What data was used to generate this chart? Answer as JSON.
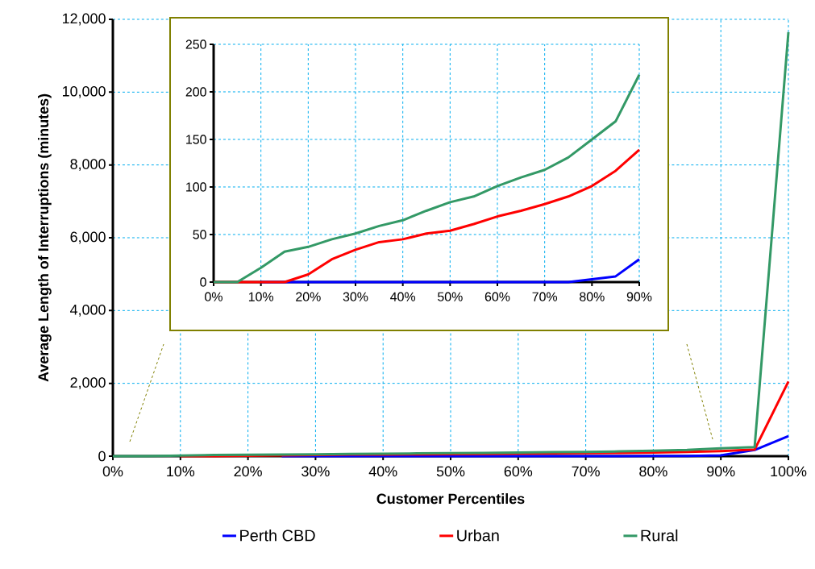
{
  "chart_data": [
    {
      "type": "line",
      "xlabel": "Customer Percentiles",
      "ylabel": "Average Length of Interruptions (minutes)",
      "x": [
        0,
        5,
        10,
        15,
        20,
        25,
        30,
        35,
        40,
        45,
        50,
        55,
        60,
        65,
        70,
        75,
        80,
        85,
        90,
        95,
        100
      ],
      "series": [
        {
          "name": "Perth CBD",
          "color": "#0000ff",
          "values": [
            null,
            null,
            null,
            null,
            null,
            0,
            0,
            0,
            0,
            0,
            0,
            0,
            0,
            0,
            0,
            0,
            3,
            6,
            24,
            170,
            550
          ]
        },
        {
          "name": "Urban",
          "color": "#ff0000",
          "values": [
            null,
            null,
            0,
            0,
            8,
            24,
            34,
            42,
            45,
            51,
            54,
            61,
            69,
            75,
            82,
            90,
            101,
            117,
            139,
            180,
            2050
          ]
        },
        {
          "name": "Rural",
          "color": "#339966",
          "values": [
            0,
            0,
            15,
            32,
            37,
            45,
            51,
            59,
            65,
            75,
            84,
            90,
            101,
            110,
            118,
            131,
            150,
            169,
            218,
            250,
            11650
          ]
        }
      ],
      "xlim": [
        0,
        100
      ],
      "ylim": [
        0,
        12000
      ],
      "xticks": [
        {
          "value": 0,
          "label": "0%"
        },
        {
          "value": 10,
          "label": "10%"
        },
        {
          "value": 20,
          "label": "20%"
        },
        {
          "value": 30,
          "label": "30%"
        },
        {
          "value": 40,
          "label": "40%"
        },
        {
          "value": 50,
          "label": "50%"
        },
        {
          "value": 60,
          "label": "60%"
        },
        {
          "value": 70,
          "label": "70%"
        },
        {
          "value": 80,
          "label": "80%"
        },
        {
          "value": 90,
          "label": "90%"
        },
        {
          "value": 100,
          "label": "100%"
        }
      ],
      "yticks": [
        0,
        {
          "value": 2000,
          "label": "2,000"
        },
        {
          "value": 4000,
          "label": "4,000"
        },
        {
          "value": 6000,
          "label": "6,000"
        },
        {
          "value": 8000,
          "label": "8,000"
        },
        {
          "value": 10000,
          "label": "10,000"
        },
        {
          "value": 12000,
          "label": "12,000"
        }
      ],
      "grid": true,
      "legend": "bottom",
      "marker": "none"
    },
    {
      "type": "line",
      "x": [
        0,
        5,
        10,
        15,
        20,
        25,
        30,
        35,
        40,
        45,
        50,
        55,
        60,
        65,
        70,
        75,
        80,
        85,
        90
      ],
      "series": [
        {
          "color": "#0000ff",
          "values": [
            null,
            null,
            0,
            0,
            0,
            0,
            0,
            0,
            0,
            0,
            0,
            0,
            0,
            0,
            0,
            0,
            3,
            6,
            24
          ]
        },
        {
          "color": "#ff0000",
          "values": [
            0,
            0,
            0,
            0,
            8,
            24,
            34,
            42,
            45,
            51,
            54,
            61,
            69,
            75,
            82,
            90,
            101,
            117,
            139
          ]
        },
        {
          "color": "#339966",
          "values": [
            0,
            0,
            15,
            32,
            37,
            45,
            51,
            59,
            65,
            75,
            84,
            90,
            101,
            110,
            118,
            131,
            150,
            169,
            218
          ]
        }
      ],
      "xlim": [
        0,
        90
      ],
      "ylim": [
        0,
        250
      ],
      "xticks": [
        {
          "value": 0,
          "label": "0%"
        },
        {
          "value": 10,
          "label": "10%"
        },
        {
          "value": 20,
          "label": "20%"
        },
        {
          "value": 30,
          "label": "30%"
        },
        {
          "value": 40,
          "label": "40%"
        },
        {
          "value": 50,
          "label": "50%"
        },
        {
          "value": 60,
          "label": "60%"
        },
        {
          "value": 70,
          "label": "70%"
        },
        {
          "value": 80,
          "label": "80%"
        },
        {
          "value": 90,
          "label": "90%"
        }
      ],
      "yticks": [
        0,
        50,
        100,
        150,
        200,
        250
      ],
      "grid": true,
      "legend": false,
      "marker": "none"
    }
  ]
}
